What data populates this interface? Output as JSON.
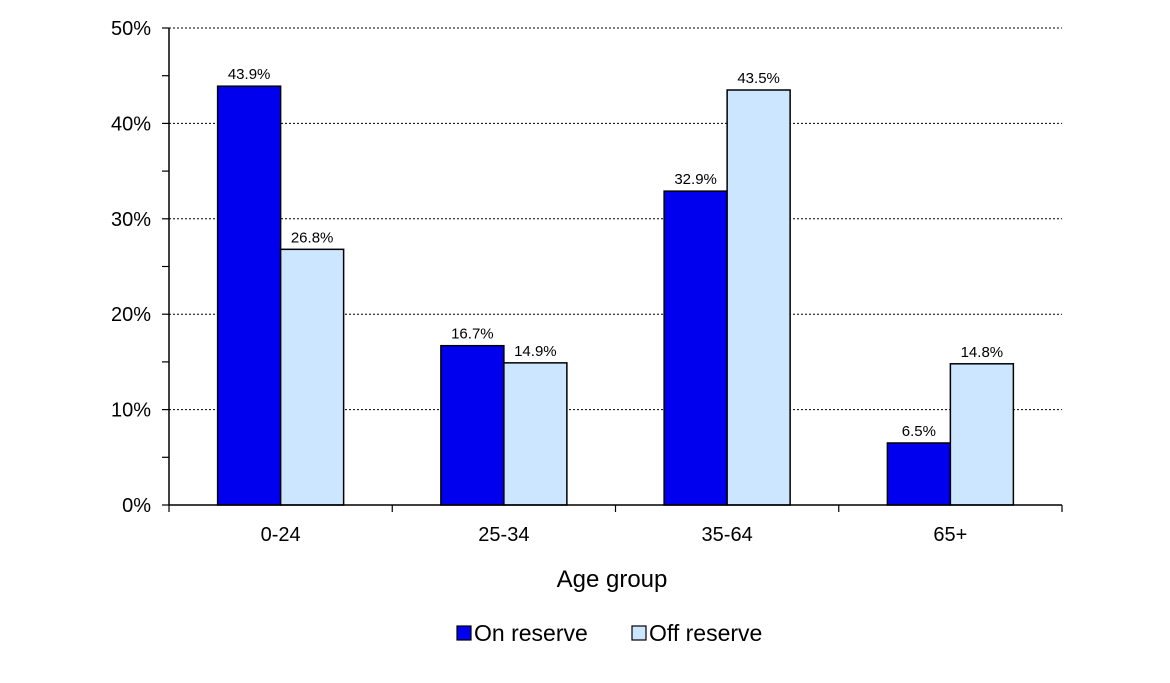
{
  "chart_data": {
    "type": "bar",
    "title": "",
    "xlabel": "Age group",
    "ylabel": "",
    "categories": [
      "0-24",
      "25-34",
      "35-64",
      "65+"
    ],
    "series": [
      {
        "name": "On reserve",
        "values": [
          43.9,
          16.7,
          32.9,
          6.5
        ],
        "labels": [
          "43.9%",
          "16.7%",
          "32.9%",
          "6.5%"
        ],
        "color": "#0000ee"
      },
      {
        "name": "Off reserve",
        "values": [
          26.8,
          14.9,
          43.5,
          14.8
        ],
        "labels": [
          "26.8%",
          "14.9%",
          "43.5%",
          "14.8%"
        ],
        "color": "#cce6ff"
      }
    ],
    "ylim": [
      0,
      50
    ],
    "yticks": [
      0,
      10,
      20,
      30,
      40,
      50
    ],
    "ytick_labels": [
      "0%",
      "10%",
      "20%",
      "30%",
      "40%",
      "50%"
    ],
    "grid": true,
    "legend_position": "bottom-center"
  }
}
